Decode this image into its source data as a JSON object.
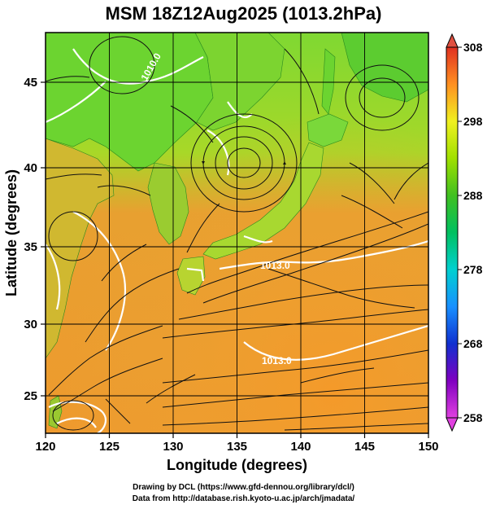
{
  "figure": {
    "title": "MSM 18Z12Aug2025 (1013.2hPa)"
  },
  "chart_data": {
    "type": "map",
    "xlabel": "Longitude (degrees)",
    "ylabel": "Latitude  (degrees)",
    "xlim": [
      120,
      150
    ],
    "ylim": [
      22.4,
      47.6
    ],
    "xticks": [
      120,
      125,
      130,
      135,
      140,
      145,
      150
    ],
    "yticks": [
      25,
      30,
      35,
      40,
      45
    ],
    "grid": true,
    "colorbar": {
      "min": 258,
      "max": 308,
      "tick_labels": [
        "308",
        "298",
        "288",
        "278",
        "268",
        "258"
      ],
      "tick_values": [
        308,
        298,
        288,
        278,
        268,
        258
      ],
      "colors": {
        "258": "#e040e0",
        "263": "#8000c0",
        "268": "#1030d0",
        "273": "#1890ff",
        "278": "#00d0d0",
        "283": "#00c060",
        "288": "#20b020",
        "293": "#80e000",
        "298": "#f0f020",
        "303": "#ff9020",
        "308": "#e03020"
      }
    },
    "contour_labels": [
      {
        "text": "1010.0",
        "lon": 129.5,
        "lat": 45.6
      },
      {
        "text": "1013.0",
        "lon": 138.2,
        "lat": 34.2
      },
      {
        "text": "1013.0",
        "lon": 138.8,
        "lat": 28.3
      }
    ],
    "notes_visible": "wind streamlines over temperature shading with isobars"
  },
  "credits": {
    "line1": "Drawing by DCL (https://www.gfd-dennou.org/library/dcl/)",
    "line2": "Data from http://database.rish.kyoto-u.ac.jp/arch/jmadata/"
  }
}
